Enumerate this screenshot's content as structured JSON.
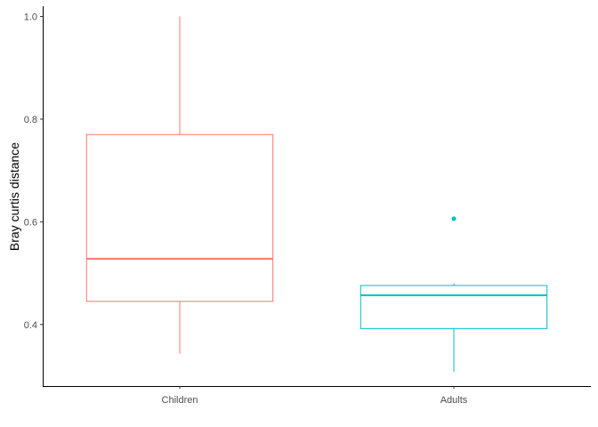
{
  "chart_data": {
    "type": "boxplot",
    "title": "",
    "xlabel": "",
    "ylabel": "Bray curtis distance",
    "ylim": [
      0.28,
      1.02
    ],
    "yticks": [
      0.4,
      0.6,
      0.8,
      1.0
    ],
    "ytick_labels": [
      "0.4",
      "0.6",
      "0.8",
      "1.0"
    ],
    "grid": false,
    "legend": "none",
    "categories": [
      "Children",
      "Adults"
    ],
    "boxes": [
      {
        "category": "Children",
        "color": "#F8766D",
        "min": 0.343,
        "q1": 0.445,
        "median": 0.528,
        "q3": 0.77,
        "max": 1.0,
        "outliers": []
      },
      {
        "category": "Adults",
        "color": "#00BFC4",
        "min": 0.308,
        "q1": 0.392,
        "median": 0.457,
        "q3": 0.476,
        "max": 0.48,
        "outliers": [
          0.606
        ]
      }
    ]
  }
}
